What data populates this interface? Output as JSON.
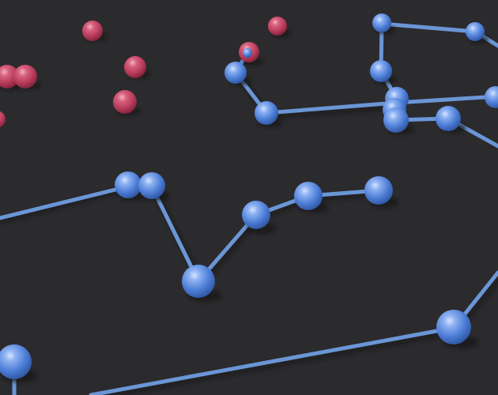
{
  "scene": {
    "background_color": "#2b2a2d",
    "link_color": "#6a96d6",
    "blue_node_color": "#4a7fd9",
    "red_node_color": "#c44a66",
    "shadow_color": "#141316"
  }
}
